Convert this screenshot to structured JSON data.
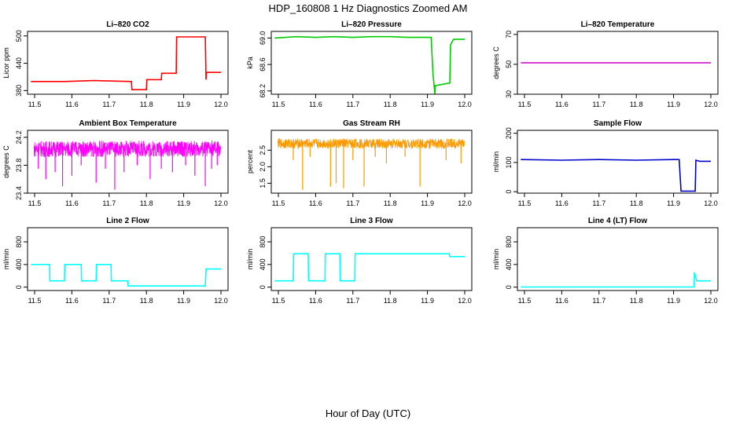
{
  "figure": {
    "title": "HDP_160808  1 Hz Diagnostics Zoomed AM",
    "xlabel": "Hour of Day (UTC)"
  },
  "chart_data": [
    {
      "type": "line",
      "title": "Li–820 CO2",
      "ylabel": "Licor ppm",
      "color": "#ff0000",
      "xlim": [
        11.5,
        12.0
      ],
      "ylim": [
        372,
        510
      ],
      "xticks": [
        "11.5",
        "11.6",
        "11.7",
        "11.8",
        "11.9",
        "12.0"
      ],
      "yticks": [
        "380",
        "440",
        "500"
      ],
      "x": [
        11.49,
        11.58,
        11.66,
        11.76,
        11.761,
        11.8,
        11.801,
        11.84,
        11.841,
        11.88,
        11.881,
        11.958,
        11.96,
        11.961,
        12.0
      ],
      "y": [
        400,
        400,
        402,
        400,
        382,
        382,
        404,
        404,
        418,
        418,
        498,
        498,
        404,
        420,
        420
      ]
    },
    {
      "type": "line",
      "title": "Li–820 Pressure",
      "ylabel": "kPa",
      "color": "#00cc00",
      "xlim": [
        11.5,
        12.0
      ],
      "ylim": [
        68.15,
        69.1
      ],
      "xticks": [
        "11.5",
        "11.6",
        "11.7",
        "11.8",
        "11.9",
        "12.0"
      ],
      "yticks": [
        "68.2",
        "68.6",
        "69.0"
      ],
      "x": [
        11.49,
        11.55,
        11.6,
        11.65,
        11.7,
        11.75,
        11.8,
        11.85,
        11.91,
        11.915,
        11.92,
        11.921,
        11.96,
        11.962,
        11.97,
        12.0
      ],
      "y": [
        69.0,
        69.02,
        69.01,
        69.02,
        69.01,
        69.02,
        69.02,
        69.01,
        69.01,
        68.45,
        68.15,
        68.28,
        68.32,
        68.9,
        68.98,
        68.98
      ]
    },
    {
      "type": "line",
      "title": "Li–820 Temperature",
      "ylabel": "degrees C",
      "color": "#cc00cc",
      "xlim": [
        11.5,
        12.0
      ],
      "ylim": [
        30,
        72
      ],
      "xticks": [
        "11.5",
        "11.6",
        "11.7",
        "11.8",
        "11.9",
        "12.0"
      ],
      "yticks": [
        "30",
        "50",
        "70"
      ],
      "x": [
        11.49,
        12.0
      ],
      "y": [
        51,
        51
      ]
    },
    {
      "type": "line",
      "title": "Ambient Box Temperature",
      "ylabel": "degrees C",
      "color": "#ff00ff",
      "xlim": [
        11.5,
        12.0
      ],
      "ylim": [
        23.4,
        24.3
      ],
      "xticks": [
        "11.5",
        "11.6",
        "11.7",
        "11.8",
        "11.9",
        "12.0"
      ],
      "yticks": [
        "23.4",
        "23.8",
        "24.2"
      ],
      "band": [
        23.92,
        24.15
      ],
      "base": 24.05,
      "spikes": [
        [
          11.51,
          23.75
        ],
        [
          11.53,
          23.6
        ],
        [
          11.555,
          23.7
        ],
        [
          11.575,
          23.5
        ],
        [
          11.6,
          23.65
        ],
        [
          11.625,
          23.8
        ],
        [
          11.665,
          23.55
        ],
        [
          11.69,
          23.75
        ],
        [
          11.715,
          23.45
        ],
        [
          11.74,
          23.7
        ],
        [
          11.775,
          23.8
        ],
        [
          11.81,
          23.6
        ],
        [
          11.84,
          23.75
        ],
        [
          11.87,
          23.7
        ],
        [
          11.905,
          23.8
        ],
        [
          11.93,
          23.65
        ],
        [
          11.958,
          23.5
        ],
        [
          11.975,
          23.75
        ],
        [
          11.99,
          23.8
        ]
      ]
    },
    {
      "type": "line",
      "title": "Gas Stream RH",
      "ylabel": "percent",
      "color": "#ff9900",
      "xlim": [
        11.5,
        12.0
      ],
      "ylim": [
        1.2,
        3.1
      ],
      "xticks": [
        "11.5",
        "11.6",
        "11.7",
        "11.8",
        "11.9",
        "12.0"
      ],
      "yticks": [
        "1.5",
        "2.0",
        "2.5"
      ],
      "band": [
        2.55,
        2.85
      ],
      "base": 2.68,
      "spikes": [
        [
          11.54,
          2.2
        ],
        [
          11.565,
          1.3
        ],
        [
          11.585,
          2.3
        ],
        [
          11.64,
          1.4
        ],
        [
          11.655,
          1.5
        ],
        [
          11.675,
          1.35
        ],
        [
          11.7,
          2.2
        ],
        [
          11.73,
          1.4
        ],
        [
          11.76,
          2.3
        ],
        [
          11.79,
          2.1
        ],
        [
          11.84,
          2.3
        ],
        [
          11.88,
          1.4
        ],
        [
          11.95,
          2.2
        ],
        [
          11.99,
          2.1
        ]
      ]
    },
    {
      "type": "line",
      "title": "Sample Flow",
      "ylabel": "ml/min",
      "color": "#0000cc",
      "xlim": [
        11.5,
        12.0
      ],
      "ylim": [
        -5,
        210
      ],
      "xticks": [
        "11.5",
        "11.6",
        "11.7",
        "11.8",
        "11.9",
        "12.0"
      ],
      "yticks": [
        "0",
        "100",
        "200"
      ],
      "x": [
        11.49,
        11.6,
        11.7,
        11.8,
        11.9,
        11.915,
        11.92,
        11.958,
        11.96,
        11.97,
        12.0
      ],
      "y": [
        110,
        108,
        110,
        108,
        110,
        110,
        2,
        2,
        108,
        104,
        104
      ]
    },
    {
      "type": "line",
      "title": "Line 2 Flow",
      "ylabel": "ml/min",
      "color": "#00ffff",
      "xlim": [
        11.5,
        12.0
      ],
      "ylim": [
        -60,
        1050
      ],
      "xticks": [
        "11.5",
        "11.6",
        "11.7",
        "11.8",
        "11.9",
        "12.0"
      ],
      "yticks": [
        "0",
        "400",
        "800"
      ],
      "x": [
        11.49,
        11.54,
        11.541,
        11.58,
        11.581,
        11.625,
        11.626,
        11.665,
        11.666,
        11.705,
        11.706,
        11.75,
        11.751,
        11.958,
        11.96,
        12.0
      ],
      "y": [
        400,
        400,
        110,
        110,
        400,
        400,
        110,
        110,
        400,
        400,
        110,
        110,
        20,
        20,
        320,
        320
      ]
    },
    {
      "type": "line",
      "title": "Line 3 Flow",
      "ylabel": "ml/min",
      "color": "#00ffff",
      "xlim": [
        11.5,
        12.0
      ],
      "ylim": [
        -60,
        1050
      ],
      "xticks": [
        "11.5",
        "11.6",
        "11.7",
        "11.8",
        "11.9",
        "12.0"
      ],
      "yticks": [
        "0",
        "400",
        "800"
      ],
      "x": [
        11.49,
        11.54,
        11.541,
        11.58,
        11.581,
        11.625,
        11.626,
        11.665,
        11.666,
        11.705,
        11.706,
        11.958,
        11.96,
        12.0
      ],
      "y": [
        110,
        110,
        590,
        590,
        110,
        110,
        590,
        590,
        110,
        110,
        590,
        590,
        540,
        540
      ]
    },
    {
      "type": "line",
      "title": "Line 4 (LT) Flow",
      "ylabel": "ml/min",
      "color": "#00ffff",
      "xlim": [
        11.5,
        12.0
      ],
      "ylim": [
        -60,
        1050
      ],
      "xticks": [
        "11.5",
        "11.6",
        "11.7",
        "11.8",
        "11.9",
        "12.0"
      ],
      "yticks": [
        "0",
        "400",
        "800"
      ],
      "x": [
        11.49,
        11.955,
        11.956,
        11.962,
        11.963,
        12.0
      ],
      "y": [
        2,
        2,
        260,
        110,
        110,
        110
      ]
    }
  ]
}
